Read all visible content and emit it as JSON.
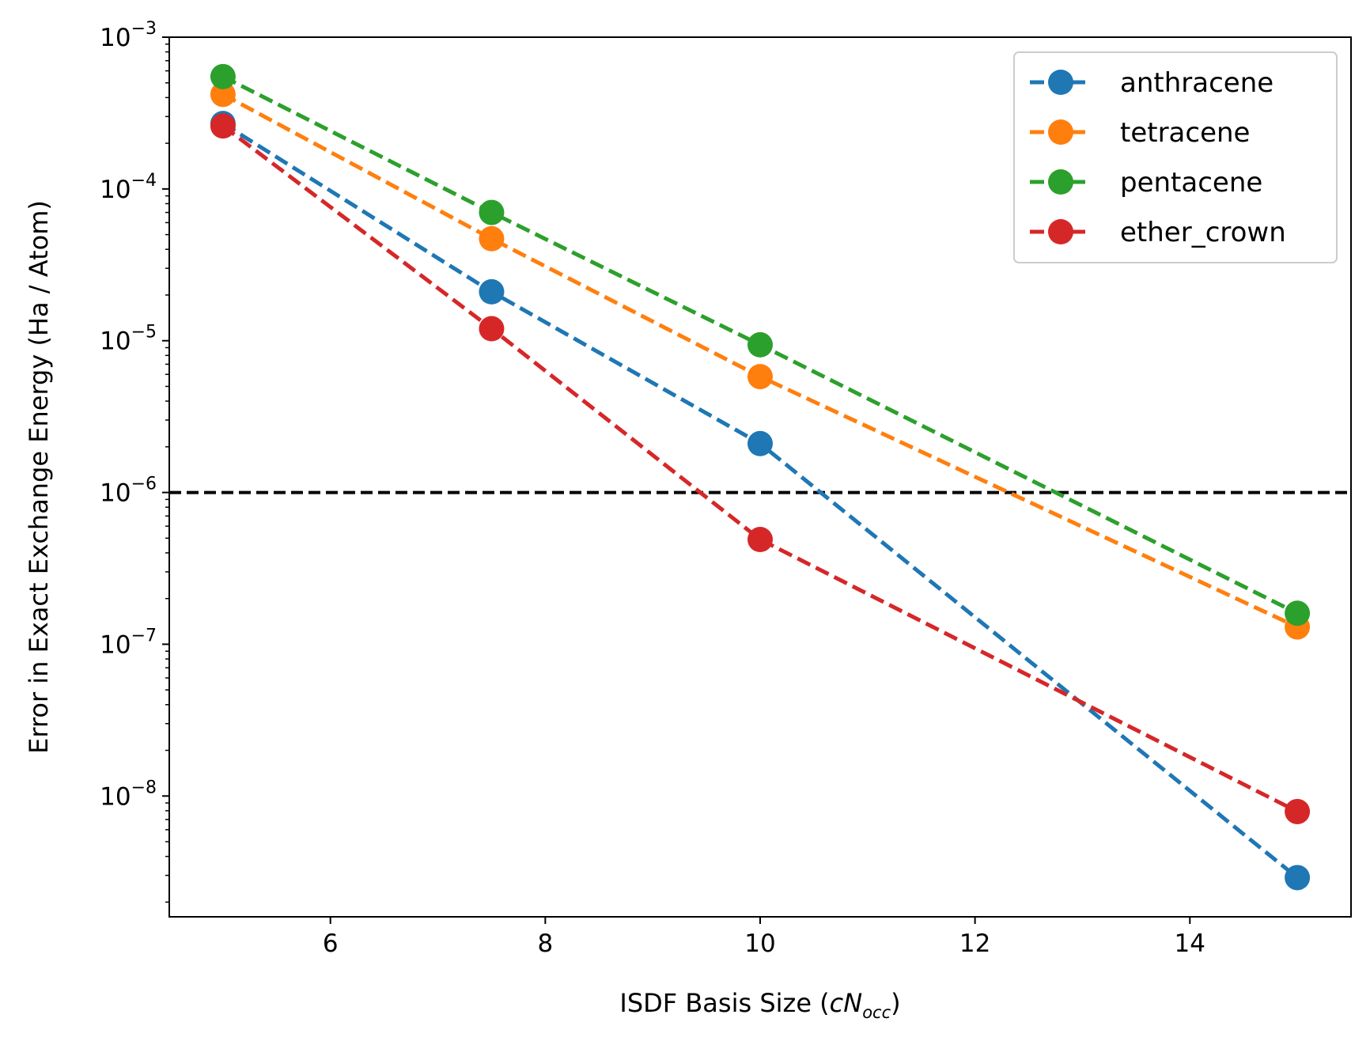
{
  "chart_data": {
    "type": "line",
    "xlabel": {
      "main": "ISDF Basis Size (",
      "italic_c": "c",
      "italic_N": "N",
      "subscript": "occ",
      "close": ")"
    },
    "ylabel": "Error in Exact Exchange Energy (Ha / Atom)",
    "x_scale": "linear",
    "y_scale": "log",
    "xlim": [
      4.5,
      15.5
    ],
    "ylim": [
      1.6e-09,
      0.001
    ],
    "x_ticks": [
      6,
      8,
      10,
      12,
      14
    ],
    "x_tick_labels": [
      "6",
      "8",
      "10",
      "12",
      "14"
    ],
    "y_ticks": [
      1e-08,
      1e-07,
      1e-06,
      1e-05,
      0.0001,
      0.001
    ],
    "y_tick_labels": [
      {
        "base": "10",
        "exp": "−8"
      },
      {
        "base": "10",
        "exp": "−7"
      },
      {
        "base": "10",
        "exp": "−6"
      },
      {
        "base": "10",
        "exp": "−5"
      },
      {
        "base": "10",
        "exp": "−4"
      },
      {
        "base": "10",
        "exp": "−3"
      }
    ],
    "grid": false,
    "legend_position": "top-right",
    "reference_line": {
      "y": 1e-06,
      "color": "#000000",
      "style": "dashed"
    },
    "series": [
      {
        "name": "anthracene",
        "color": "#1f77b4",
        "x": [
          5,
          7.5,
          10,
          15
        ],
        "y": [
          0.00027,
          2.1e-05,
          2.1e-06,
          2.9e-09
        ]
      },
      {
        "name": "tetracene",
        "color": "#ff7f0e",
        "x": [
          5,
          7.5,
          10,
          15
        ],
        "y": [
          0.00042,
          4.7e-05,
          5.8e-06,
          1.3e-07
        ]
      },
      {
        "name": "pentacene",
        "color": "#2ca02c",
        "x": [
          5,
          7.5,
          10,
          15
        ],
        "y": [
          0.00055,
          7e-05,
          9.4e-06,
          1.6e-07
        ]
      },
      {
        "name": "ether_crown",
        "color": "#d62728",
        "x": [
          5,
          7.5,
          10,
          15
        ],
        "y": [
          0.00026,
          1.2e-05,
          4.9e-07,
          7.9e-09
        ]
      }
    ]
  }
}
